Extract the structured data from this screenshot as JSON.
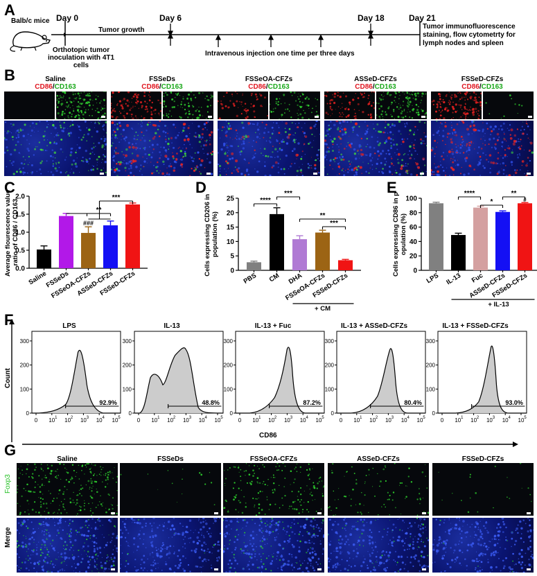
{
  "panels": {
    "A": "A",
    "B": "B",
    "C": "C",
    "D": "D",
    "E": "E",
    "F": "F",
    "G": "G"
  },
  "timeline": {
    "mouse": "Balb/c mice",
    "inoculation": "Orthotopic tumor inoculation with 4T1 cells",
    "day0": "Day 0",
    "day6": "Day 6",
    "day18": "Day 18",
    "day21": "Day 21",
    "growth": "Tumor growth",
    "injection": "Intravenous injection one time per three days",
    "endpoint": "Tumor immunofluorescence staining, flow cytometrty for lymph nodes and spleen"
  },
  "panelB": {
    "groups": [
      "Saline",
      "FSSeDs",
      "FSSeOA-CFZs",
      "ASSeD-CFZs",
      "FSSeD-CFZs"
    ],
    "marker_red": "CD86",
    "slash": "/",
    "marker_green": "CD163"
  },
  "chart_data": [
    {
      "panel": "C",
      "type": "bar",
      "ylabel": "Average flourescence value ratio of CD86 / CD163",
      "ylim": [
        0,
        2.0
      ],
      "yticks": [
        "0.0",
        "0.5",
        "1.0",
        "1.5",
        "2.0"
      ],
      "categories": [
        "Saline",
        "FSSeDs",
        "FSSeOA-CFZs",
        "ASSeD-CFZs",
        "FSSeD-CFZs"
      ],
      "values": [
        0.52,
        1.45,
        0.98,
        1.19,
        1.77
      ],
      "errors": [
        0.1,
        0.07,
        0.17,
        0.12,
        0.04
      ],
      "colors": [
        "#000000",
        "#b218e8",
        "#9c6414",
        "#1410f4",
        "#f01414"
      ],
      "annotations": [
        "**",
        "***",
        "###"
      ]
    },
    {
      "panel": "D",
      "type": "bar",
      "ylabel": "Cells expressing CD206 in population (%)",
      "ylim": [
        0,
        25
      ],
      "yticks": [
        "0",
        "5",
        "10",
        "15",
        "20",
        "25"
      ],
      "categories": [
        "PBS",
        "CM",
        "DHA",
        "FSSeOA-CFZs",
        "FSSeD-CFZs"
      ],
      "values": [
        2.8,
        19.5,
        10.8,
        13.1,
        3.5
      ],
      "errors": [
        0.4,
        2.2,
        1.2,
        0.8,
        0.3
      ],
      "colors": [
        "#808080",
        "#000000",
        "#b07ad4",
        "#9c6414",
        "#f01414"
      ],
      "annotations": [
        "****",
        "***",
        "**",
        "***"
      ],
      "group_label": "+ CM"
    },
    {
      "panel": "E",
      "type": "bar",
      "ylabel": "Cells expressing CD86 in population (%)",
      "ylim": [
        0,
        100
      ],
      "yticks": [
        "0",
        "20",
        "40",
        "60",
        "80",
        "100"
      ],
      "categories": [
        "LPS",
        "IL-13",
        "Fuc",
        "ASSeD-CFZs",
        "FSSeD-CFZs"
      ],
      "values": [
        93,
        49,
        87,
        81,
        93
      ],
      "errors": [
        1.5,
        2.5,
        2.0,
        1.5,
        1.0
      ],
      "colors": [
        "#808080",
        "#000000",
        "#d4a0a0",
        "#1410f4",
        "#f01414"
      ],
      "annotations": [
        "****",
        "*",
        "**",
        "#"
      ],
      "group_label": "+ IL-13"
    }
  ],
  "panelF": {
    "ylabel": "Count",
    "xlabel": "CD86",
    "yticks": [
      "0",
      "100",
      "200",
      "300"
    ],
    "xtick_labels": [
      "0",
      "10",
      "10",
      "10",
      "10",
      "10"
    ],
    "xtick_exps": [
      "",
      "1",
      "2",
      "3",
      "4",
      "5"
    ],
    "histograms": [
      {
        "title": "LPS",
        "percent": "92.9%"
      },
      {
        "title": "IL-13",
        "percent": "48.8%"
      },
      {
        "title": "IL-13 + Fuc",
        "percent": "87.2%"
      },
      {
        "title": "IL-13 + ASSeD-CFZs",
        "percent": "80.4%"
      },
      {
        "title": "IL-13 + FSSeD-CFZs",
        "percent": "93.0%"
      }
    ]
  },
  "panelG": {
    "groups": [
      "Saline",
      "FSSeDs",
      "FSSeOA-CFZs",
      "ASSeD-CFZs",
      "FSSeD-CFZs"
    ],
    "row1": "Foxp3",
    "row2": "Merge"
  },
  "colors": {
    "red_marker": "#e0141e",
    "green_marker": "#1aa81a",
    "foxp3": "#22c022",
    "histogram_fill": "#cccccc"
  }
}
